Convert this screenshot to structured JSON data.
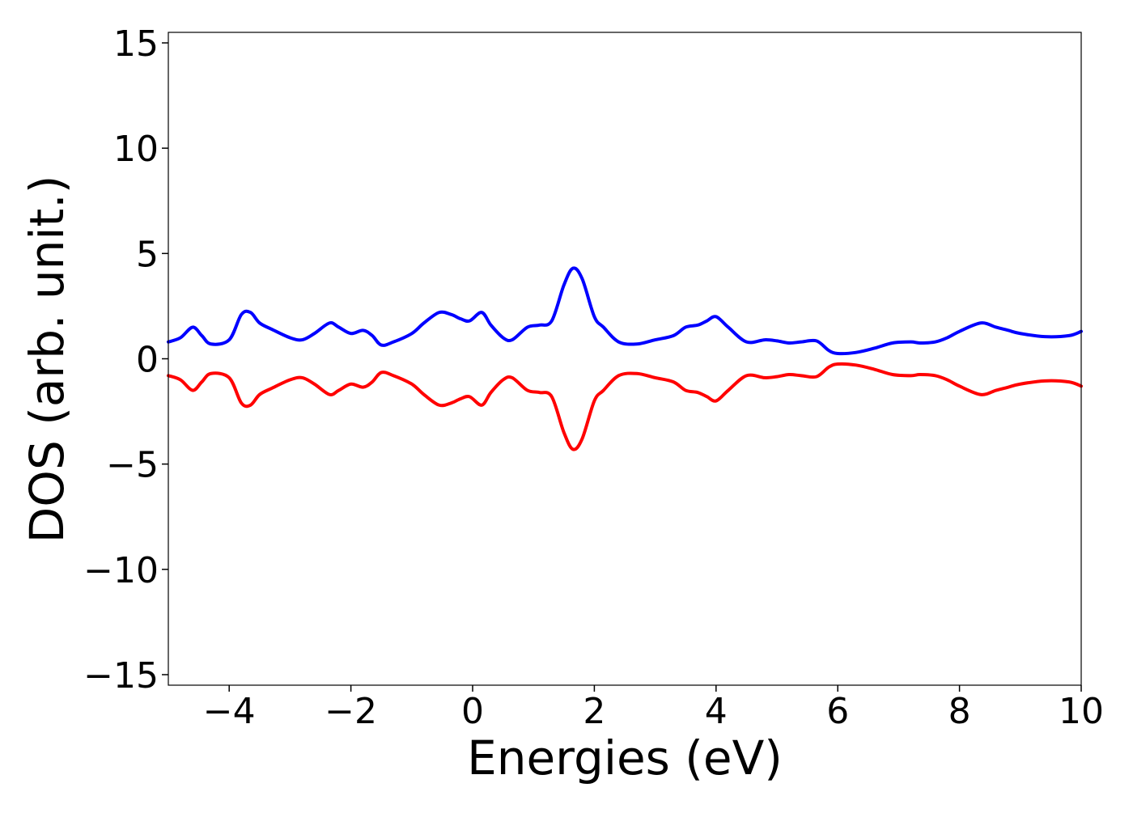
{
  "chart_data": {
    "type": "line",
    "title": "",
    "xlabel": "Energies (eV)",
    "ylabel": "DOS (arb. unit.)",
    "xlim": [
      -5,
      10
    ],
    "ylim": [
      -15.5,
      15.5
    ],
    "xticks": [
      -4,
      -2,
      0,
      2,
      4,
      6,
      8,
      10
    ],
    "xtick_labels": [
      "−4",
      "−2",
      "0",
      "2",
      "4",
      "6",
      "8",
      "10"
    ],
    "yticks": [
      -15,
      -10,
      -5,
      0,
      5,
      10,
      15
    ],
    "ytick_labels": [
      "−15",
      "−10",
      "−5",
      "0",
      "5",
      "10",
      "15"
    ],
    "grid": false,
    "series": [
      {
        "color": "#0000ff",
        "x": [
          -5.0,
          -4.8,
          -4.6,
          -4.45,
          -4.3,
          -4.0,
          -3.8,
          -3.65,
          -3.5,
          -3.3,
          -3.0,
          -2.8,
          -2.6,
          -2.35,
          -2.2,
          -2.0,
          -1.8,
          -1.65,
          -1.5,
          -1.3,
          -1.0,
          -0.8,
          -0.55,
          -0.35,
          -0.2,
          -0.05,
          0.15,
          0.3,
          0.5,
          0.65,
          0.9,
          1.1,
          1.3,
          1.5,
          1.65,
          1.8,
          2.0,
          2.15,
          2.4,
          2.7,
          3.0,
          3.3,
          3.5,
          3.7,
          3.85,
          4.0,
          4.2,
          4.5,
          4.8,
          5.0,
          5.2,
          5.4,
          5.65,
          5.85,
          6.0,
          6.3,
          6.6,
          6.9,
          7.2,
          7.35,
          7.6,
          7.8,
          8.0,
          8.35,
          8.6,
          8.8,
          9.0,
          9.4,
          9.8,
          10.0
        ],
        "y": [
          0.8,
          1.0,
          1.5,
          1.1,
          0.7,
          0.9,
          2.1,
          2.2,
          1.7,
          1.4,
          1.0,
          0.9,
          1.2,
          1.7,
          1.5,
          1.2,
          1.35,
          1.1,
          0.65,
          0.8,
          1.2,
          1.7,
          2.2,
          2.1,
          1.9,
          1.8,
          2.2,
          1.6,
          1.0,
          0.9,
          1.5,
          1.6,
          1.8,
          3.5,
          4.3,
          3.8,
          2.0,
          1.5,
          0.8,
          0.7,
          0.9,
          1.1,
          1.5,
          1.6,
          1.8,
          2.0,
          1.5,
          0.8,
          0.9,
          0.85,
          0.75,
          0.8,
          0.85,
          0.4,
          0.25,
          0.3,
          0.5,
          0.75,
          0.8,
          0.75,
          0.8,
          1.0,
          1.3,
          1.7,
          1.5,
          1.35,
          1.2,
          1.05,
          1.1,
          1.3
        ]
      },
      {
        "color": "#ff0000",
        "x": [
          -5.0,
          -4.8,
          -4.6,
          -4.45,
          -4.3,
          -4.0,
          -3.8,
          -3.65,
          -3.5,
          -3.3,
          -3.0,
          -2.8,
          -2.6,
          -2.35,
          -2.2,
          -2.0,
          -1.8,
          -1.65,
          -1.5,
          -1.3,
          -1.0,
          -0.8,
          -0.55,
          -0.35,
          -0.2,
          -0.05,
          0.15,
          0.3,
          0.5,
          0.65,
          0.9,
          1.1,
          1.3,
          1.5,
          1.65,
          1.8,
          2.0,
          2.15,
          2.4,
          2.7,
          3.0,
          3.3,
          3.5,
          3.7,
          3.85,
          4.0,
          4.2,
          4.5,
          4.8,
          5.0,
          5.2,
          5.4,
          5.65,
          5.85,
          6.0,
          6.3,
          6.6,
          6.9,
          7.2,
          7.35,
          7.6,
          7.8,
          8.0,
          8.35,
          8.6,
          8.8,
          9.0,
          9.4,
          9.8,
          10.0
        ],
        "y": [
          -0.8,
          -1.0,
          -1.5,
          -1.1,
          -0.7,
          -0.9,
          -2.1,
          -2.2,
          -1.7,
          -1.4,
          -1.0,
          -0.9,
          -1.2,
          -1.7,
          -1.5,
          -1.2,
          -1.35,
          -1.1,
          -0.65,
          -0.8,
          -1.2,
          -1.7,
          -2.2,
          -2.1,
          -1.9,
          -1.8,
          -2.2,
          -1.6,
          -1.0,
          -0.9,
          -1.5,
          -1.6,
          -1.8,
          -3.5,
          -4.3,
          -3.8,
          -2.0,
          -1.5,
          -0.8,
          -0.7,
          -0.9,
          -1.1,
          -1.5,
          -1.6,
          -1.8,
          -2.0,
          -1.5,
          -0.8,
          -0.9,
          -0.85,
          -0.75,
          -0.8,
          -0.85,
          -0.4,
          -0.25,
          -0.3,
          -0.5,
          -0.75,
          -0.8,
          -0.75,
          -0.8,
          -1.0,
          -1.3,
          -1.7,
          -1.5,
          -1.35,
          -1.2,
          -1.05,
          -1.1,
          -1.3
        ]
      }
    ]
  }
}
